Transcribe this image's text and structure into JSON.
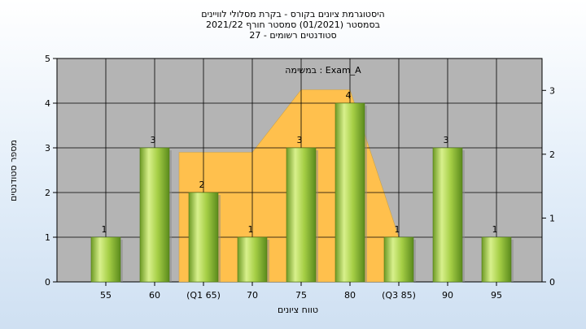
{
  "chart_data": {
    "type": "bar",
    "title_lines": [
      "היסטוגרמת ציונים בקורס - בקרת מסלולי לוויינים",
      "בסמסטר  (01/2021)  סמסטר חורף 2021/22",
      "סטודנטים רשומים - 27"
    ],
    "categories": [
      "55",
      "60",
      "(Q1 65)",
      "70",
      "75",
      "80",
      "(Q3 85)",
      "90",
      "95"
    ],
    "values": [
      1,
      3,
      2,
      1,
      3,
      4,
      1,
      3,
      1
    ],
    "xlabel": "טווח ציונים",
    "ylabel": "מספר סטודנטים",
    "ylim": [
      0,
      5
    ],
    "yticks": [
      0,
      1,
      2,
      3,
      4,
      5
    ],
    "y2lim": [
      0,
      3.5
    ],
    "y2ticks": [
      0,
      1,
      2,
      3
    ],
    "grid": true,
    "annotation": "במשימה : Exam_A",
    "colors": {
      "bar_light": "#d9f08a",
      "bar_mid": "#9cc43e",
      "bar_dark": "#5d8a1e",
      "area_fill": "#ffc04d",
      "plot_bg": "#b4b4b4",
      "grid": "#000000"
    },
    "background_area": {
      "categories": [
        "(Q1 65)",
        "70",
        "75",
        "80",
        "(Q3 85)"
      ],
      "values": [
        2.9,
        2.9,
        4.3,
        4.3,
        1.0
      ]
    }
  }
}
